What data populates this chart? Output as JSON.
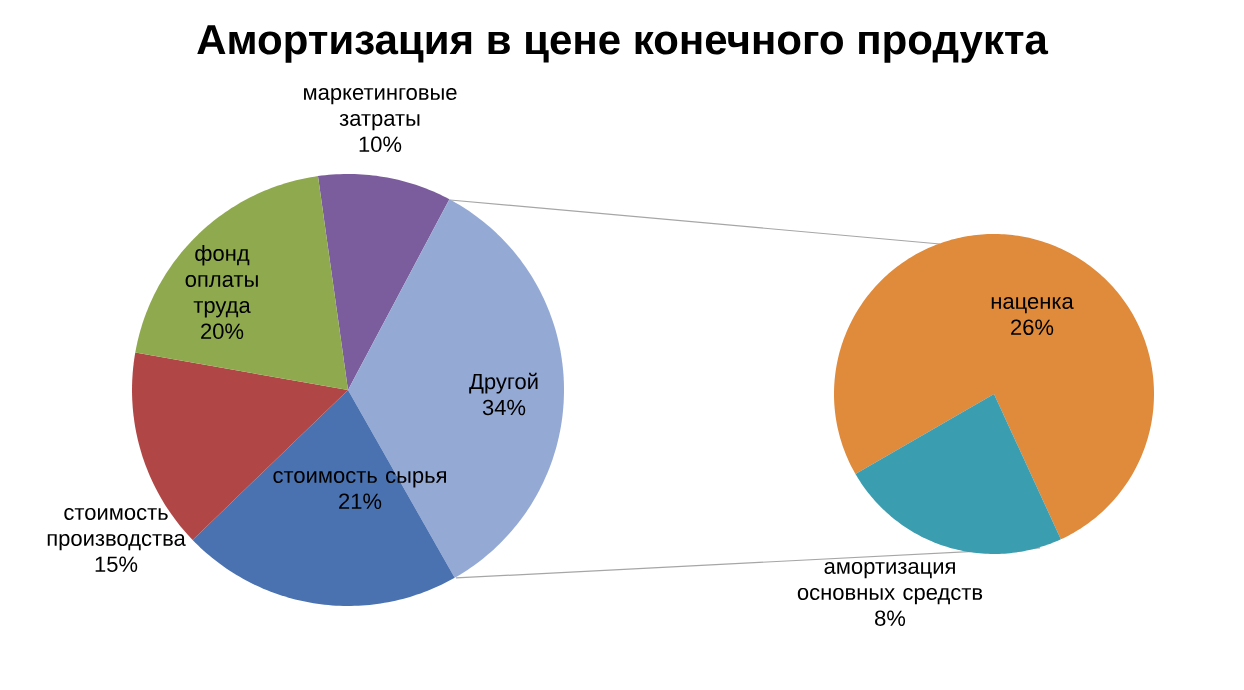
{
  "chart_data": [
    {
      "type": "pie",
      "title": "Амортизация в цене конечного продукта",
      "categories": [
        "маркетинговые затраты",
        "Другой",
        "стоимость сырья",
        "стоимость производства",
        "фонд оплаты труда"
      ],
      "values": [
        10,
        34,
        21,
        15,
        20
      ],
      "value_labels": [
        "10%",
        "34%",
        "21%",
        "15%",
        "20%"
      ],
      "colors": [
        "#7b5c9c",
        "#94a9d4",
        "#4a72b0",
        "#b04645",
        "#8fa94f"
      ]
    },
    {
      "type": "pie",
      "categories": [
        "наценка",
        "амортизация основных средств"
      ],
      "values": [
        26,
        8
      ],
      "value_labels": [
        "26%",
        "8%"
      ],
      "colors": [
        "#e08a3c",
        "#3a9db0"
      ]
    }
  ]
}
